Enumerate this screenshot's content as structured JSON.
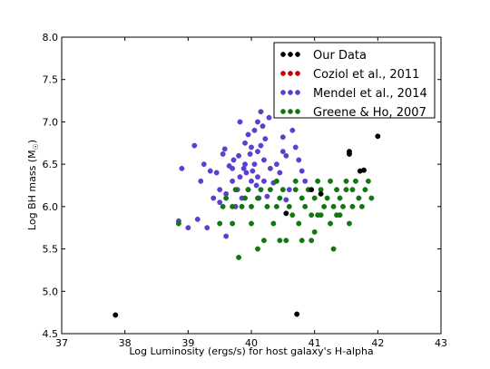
{
  "chart_data": {
    "type": "scatter",
    "xlabel": "Log Luminosity (ergs/s) for host galaxy's H-alpha",
    "ylabel": "Log BH mass (M",
    "ylabel_sub": "☉",
    "ylabel_close": ")",
    "xlim": [
      37,
      43
    ],
    "ylim": [
      4.5,
      8.0
    ],
    "xticks": [
      37,
      38,
      39,
      40,
      41,
      42,
      43
    ],
    "xtick_labels": [
      "37",
      "38",
      "39",
      "40",
      "41",
      "42",
      "43"
    ],
    "yticks": [
      4.5,
      5.0,
      5.5,
      6.0,
      6.5,
      7.0,
      7.5,
      8.0
    ],
    "ytick_labels": [
      "4.5",
      "5.0",
      "5.5",
      "6.0",
      "6.5",
      "7.0",
      "7.5",
      "8.0"
    ],
    "grid": false,
    "legend_position": "top-right",
    "series": [
      {
        "name": "Our Data",
        "color": "#000000",
        "points": [
          [
            37.85,
            4.72
          ],
          [
            40.72,
            4.73
          ],
          [
            40.55,
            5.92
          ],
          [
            40.95,
            6.2
          ],
          [
            41.1,
            6.15
          ],
          [
            41.55,
            6.65
          ],
          [
            41.55,
            6.62
          ],
          [
            41.78,
            6.43
          ],
          [
            41.72,
            6.42
          ],
          [
            42.0,
            6.83
          ]
        ]
      },
      {
        "name": "Coziol et al., 2011",
        "color": "#cc0000",
        "points": []
      },
      {
        "name": "Mendel et al., 2014",
        "color": "#5a3fd0",
        "points": [
          [
            38.85,
            5.83
          ],
          [
            38.9,
            6.45
          ],
          [
            39.0,
            5.75
          ],
          [
            39.1,
            6.72
          ],
          [
            39.15,
            5.85
          ],
          [
            39.2,
            6.3
          ],
          [
            39.25,
            6.5
          ],
          [
            39.3,
            5.75
          ],
          [
            39.35,
            6.42
          ],
          [
            39.4,
            6.1
          ],
          [
            39.45,
            6.4
          ],
          [
            39.5,
            6.2
          ],
          [
            39.5,
            6.05
          ],
          [
            39.55,
            6.62
          ],
          [
            39.58,
            6.68
          ],
          [
            39.6,
            6.15
          ],
          [
            39.6,
            5.65
          ],
          [
            39.65,
            6.48
          ],
          [
            39.7,
            6.3
          ],
          [
            39.7,
            6.45
          ],
          [
            39.72,
            6.55
          ],
          [
            39.75,
            6.0
          ],
          [
            39.78,
            6.2
          ],
          [
            39.8,
            6.6
          ],
          [
            39.82,
            6.35
          ],
          [
            39.82,
            7.0
          ],
          [
            39.85,
            6.1
          ],
          [
            39.88,
            6.45
          ],
          [
            39.9,
            6.5
          ],
          [
            39.9,
            6.75
          ],
          [
            39.92,
            6.4
          ],
          [
            39.95,
            6.2
          ],
          [
            39.95,
            6.85
          ],
          [
            39.98,
            6.62
          ],
          [
            40.0,
            6.3
          ],
          [
            40.0,
            6.7
          ],
          [
            40.02,
            6.42
          ],
          [
            40.05,
            6.9
          ],
          [
            40.05,
            6.5
          ],
          [
            40.08,
            6.25
          ],
          [
            40.1,
            7.0
          ],
          [
            40.1,
            6.65
          ],
          [
            40.12,
            6.1
          ],
          [
            40.15,
            6.72
          ],
          [
            40.15,
            7.12
          ],
          [
            40.18,
            6.95
          ],
          [
            40.2,
            6.55
          ],
          [
            40.2,
            6.3
          ],
          [
            40.22,
            6.8
          ],
          [
            40.25,
            6.12
          ],
          [
            40.28,
            7.05
          ],
          [
            40.3,
            6.45
          ],
          [
            40.35,
            6.28
          ],
          [
            40.4,
            6.5
          ],
          [
            40.45,
            6.4
          ],
          [
            40.5,
            6.65
          ],
          [
            40.5,
            6.82
          ],
          [
            40.55,
            6.6
          ],
          [
            40.6,
            6.2
          ],
          [
            40.65,
            6.9
          ],
          [
            40.7,
            6.7
          ],
          [
            40.75,
            6.55
          ],
          [
            40.8,
            6.42
          ],
          [
            40.85,
            6.3
          ],
          [
            40.55,
            6.08
          ],
          [
            40.1,
            6.35
          ]
        ]
      },
      {
        "name": "Greene & Ho, 2007",
        "color": "#117711",
        "points": [
          [
            38.85,
            5.8
          ],
          [
            39.5,
            5.8
          ],
          [
            39.55,
            6.0
          ],
          [
            39.6,
            6.1
          ],
          [
            39.7,
            6.0
          ],
          [
            39.7,
            5.8
          ],
          [
            39.75,
            6.2
          ],
          [
            39.8,
            5.4
          ],
          [
            39.85,
            6.0
          ],
          [
            39.9,
            6.1
          ],
          [
            39.95,
            6.2
          ],
          [
            40.0,
            5.8
          ],
          [
            40.0,
            6.0
          ],
          [
            40.1,
            6.1
          ],
          [
            40.15,
            6.2
          ],
          [
            40.2,
            5.6
          ],
          [
            40.25,
            6.0
          ],
          [
            40.3,
            6.2
          ],
          [
            40.35,
            5.8
          ],
          [
            40.4,
            6.0
          ],
          [
            40.4,
            6.3
          ],
          [
            40.45,
            5.6
          ],
          [
            40.45,
            6.1
          ],
          [
            40.5,
            6.2
          ],
          [
            40.55,
            5.6
          ],
          [
            40.6,
            6.0
          ],
          [
            40.65,
            5.9
          ],
          [
            40.7,
            6.2
          ],
          [
            40.7,
            6.3
          ],
          [
            40.75,
            5.8
          ],
          [
            40.8,
            6.1
          ],
          [
            40.8,
            5.6
          ],
          [
            40.85,
            6.0
          ],
          [
            40.9,
            6.2
          ],
          [
            40.95,
            5.9
          ],
          [
            41.0,
            6.1
          ],
          [
            41.0,
            5.7
          ],
          [
            41.05,
            6.3
          ],
          [
            41.05,
            5.9
          ],
          [
            41.1,
            6.2
          ],
          [
            41.15,
            6.0
          ],
          [
            41.2,
            6.1
          ],
          [
            41.25,
            5.8
          ],
          [
            41.25,
            6.3
          ],
          [
            41.3,
            6.0
          ],
          [
            41.35,
            6.2
          ],
          [
            41.35,
            5.9
          ],
          [
            41.4,
            6.1
          ],
          [
            41.45,
            6.0
          ],
          [
            41.5,
            6.2
          ],
          [
            41.5,
            6.3
          ],
          [
            41.55,
            5.8
          ],
          [
            41.6,
            6.0
          ],
          [
            41.6,
            6.2
          ],
          [
            41.65,
            6.3
          ],
          [
            41.7,
            6.1
          ],
          [
            41.75,
            6.0
          ],
          [
            41.8,
            6.2
          ],
          [
            41.85,
            6.3
          ],
          [
            41.9,
            6.1
          ],
          [
            41.1,
            5.9
          ],
          [
            40.95,
            5.6
          ],
          [
            41.3,
            5.5
          ],
          [
            40.1,
            5.5
          ],
          [
            41.4,
            5.9
          ]
        ]
      }
    ]
  }
}
